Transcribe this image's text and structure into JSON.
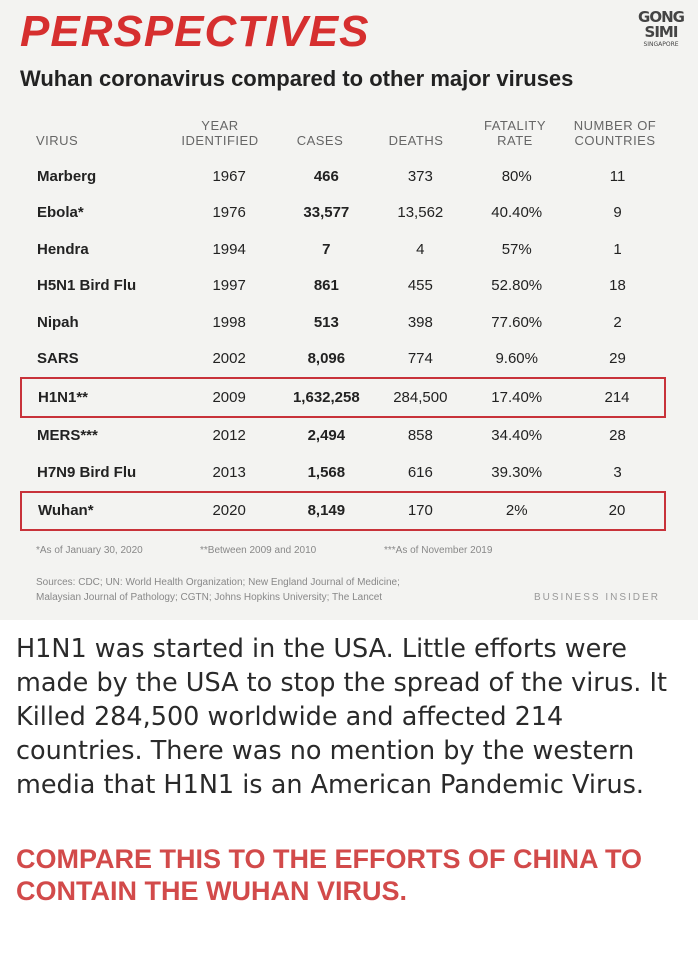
{
  "header": {
    "title": "PERSPECTIVES",
    "subtitle": "Wuhan coronavirus compared to other major viruses",
    "logo_lines": [
      "GONG",
      "SIMI",
      "SINGAPORE"
    ]
  },
  "table": {
    "headers": {
      "virus": "VIRUS",
      "year_1": "YEAR",
      "year_2": "IDENTIFIED",
      "cases": "CASES",
      "deaths": "DEATHS",
      "fatality_1": "FATALITY",
      "fatality_2": "RATE",
      "countries_1": "NUMBER OF",
      "countries_2": "COUNTRIES"
    },
    "rows": [
      {
        "virus": "Marberg",
        "year": "1967",
        "cases": "466",
        "deaths": "373",
        "fatality": "80%",
        "countries": "11",
        "highlight": false
      },
      {
        "virus": "Ebola*",
        "year": "1976",
        "cases": "33,577",
        "deaths": "13,562",
        "fatality": "40.40%",
        "countries": "9",
        "highlight": false
      },
      {
        "virus": "Hendra",
        "year": "1994",
        "cases": "7",
        "deaths": "4",
        "fatality": "57%",
        "countries": "1",
        "highlight": false
      },
      {
        "virus": "H5N1 Bird Flu",
        "year": "1997",
        "cases": "861",
        "deaths": "455",
        "fatality": "52.80%",
        "countries": "18",
        "highlight": false
      },
      {
        "virus": "Nipah",
        "year": "1998",
        "cases": "513",
        "deaths": "398",
        "fatality": "77.60%",
        "countries": "2",
        "highlight": false
      },
      {
        "virus": "SARS",
        "year": "2002",
        "cases": "8,096",
        "deaths": "774",
        "fatality": "9.60%",
        "countries": "29",
        "highlight": false
      },
      {
        "virus": "H1N1**",
        "year": "2009",
        "cases": "1,632,258",
        "deaths": "284,500",
        "fatality": "17.40%",
        "countries": "214",
        "highlight": true
      },
      {
        "virus": "MERS***",
        "year": "2012",
        "cases": "2,494",
        "deaths": "858",
        "fatality": "34.40%",
        "countries": "28",
        "highlight": false
      },
      {
        "virus": "H7N9 Bird Flu",
        "year": "2013",
        "cases": "1,568",
        "deaths": "616",
        "fatality": "39.30%",
        "countries": "3",
        "highlight": false
      },
      {
        "virus": "Wuhan*",
        "year": "2020",
        "cases": "8,149",
        "deaths": "170",
        "fatality": "2%",
        "countries": "20",
        "highlight": true
      }
    ],
    "highlight_color": "#c8323a"
  },
  "footnotes": {
    "f1": "*As of January 30, 2020",
    "f2": "**Between 2009 and 2010",
    "f3": "***As of November 2019",
    "sources_1": "Sources: CDC; UN: World Health Organization; New England Journal of Medicine;",
    "sources_2": "Malaysian Journal of Pathology; CGTN; Johns Hopkins University; The Lancet",
    "credit": "BUSINESS INSIDER"
  },
  "body_text": "H1N1 was started in the USA. Little efforts were made by the USA to stop the spread of the virus. It Killed 284,500 worldwide and affected 214 countries. There was no mention by the western media that H1N1 is an American Pandemic Virus.",
  "compare_text": "COMPARE THIS TO THE EFFORTS OF CHINA TO CONTAIN THE WUHAN VIRUS.",
  "colors": {
    "title": "#d62f2f",
    "compare": "#d24a4a",
    "panel": "#f3f3f1"
  }
}
